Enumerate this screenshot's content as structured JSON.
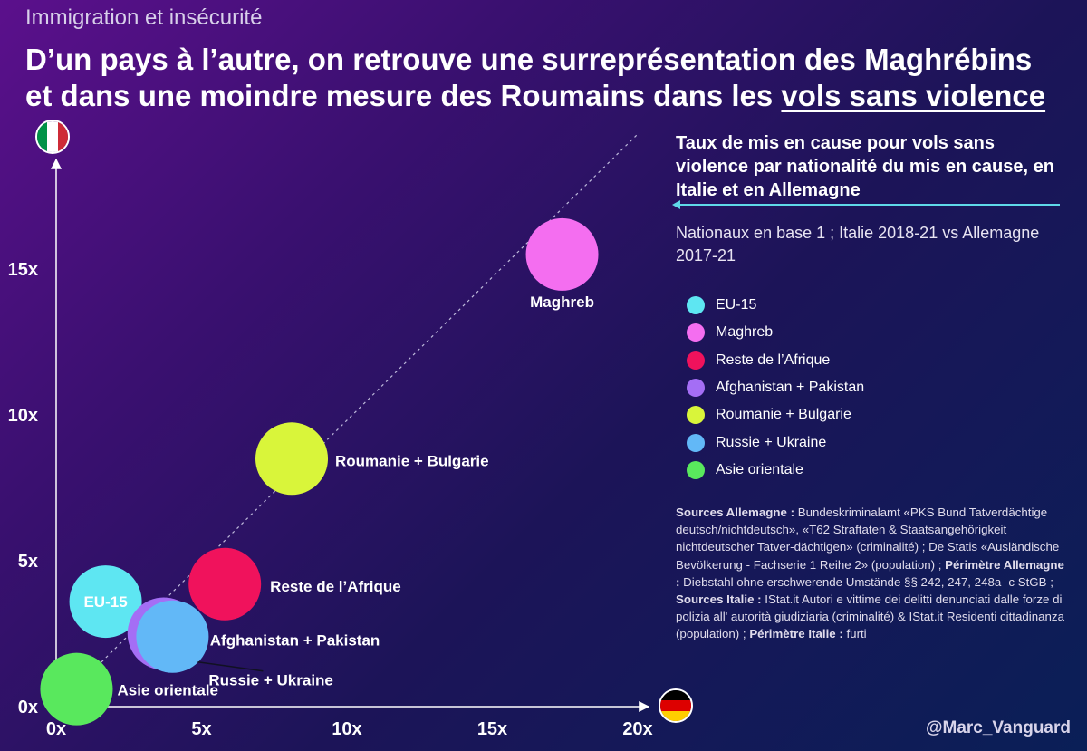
{
  "header": {
    "kicker": "Immigration et insécurité",
    "headline_line1": "D’un pays à l’autre, on retrouve une surreprésentation des Maghrébins",
    "headline_line2_pre": "et dans une moindre mesure des Roumains dans les ",
    "headline_line2_underlined": "vols sans violence"
  },
  "panel": {
    "title": "Taux de mis en cause pour vols sans violence par nationalité du mis en cause, en Italie et en Allemagne",
    "subtitle": "Nationaux en base 1 ; Italie 2018-21 vs Allemagne 2017-21"
  },
  "sources": {
    "de_label": "Sources Allemagne :",
    "de_text": " Bundeskriminalamt «PKS Bund Tatverdächtige deutsch/nichtdeutsch», «T62 Straftaten & Staatsangehörigkeit nichtdeutscher Tatver-dächtigen» (criminalité) ; De Statis «Ausländische Bevölkerung - Fachserie 1 Reihe 2» (population) ; ",
    "de_perim_label": "Périmètre Allemagne :",
    "de_perim_text": " Diebstahl ohne erschwerende Umstände §§ 242, 247, 248a -c StGB ;  ",
    "it_label": "Sources Italie :",
    "it_text": " IStat.it Autori e vittime dei delitti denunciati dalle forze di polizia all' autorità giudiziaria (criminalité) & IStat.it Residenti cittadinanza (population) ; ",
    "it_perim_label": "Périmètre Italie :",
    "it_perim_text": " furti"
  },
  "handle": "@Marc_Vanguard",
  "flags": {
    "italy": {
      "icon": "italy-flag-icon",
      "colors": [
        "#009246",
        "#ffffff",
        "#ce2b37"
      ]
    },
    "germany": {
      "icon": "germany-flag-icon",
      "colors": [
        "#000000",
        "#dd0000",
        "#ffce00"
      ]
    }
  },
  "chart_data": {
    "type": "scatter",
    "title": "Taux de mis en cause pour vols sans violence par nationalité du mis en cause, en Italie et en Allemagne",
    "xlabel": "Allemagne",
    "ylabel": "Italie",
    "xlim": [
      0,
      20
    ],
    "ylim": [
      0,
      18
    ],
    "x_ticks": [
      0,
      5,
      10,
      15,
      20
    ],
    "x_tick_labels": [
      "0x",
      "5x",
      "10x",
      "15x",
      "20x"
    ],
    "y_ticks": [
      0,
      5,
      10,
      15
    ],
    "y_tick_labels": [
      "0x",
      "5x",
      "10x",
      "15x"
    ],
    "reference_line": "y = x",
    "series": [
      {
        "name": "EU-15",
        "label": "EU-15",
        "x": 1.7,
        "y": 3.6,
        "color": "#5ee6f2"
      },
      {
        "name": "Maghreb",
        "label": "Maghreb",
        "x": 17.4,
        "y": 15.5,
        "color": "#f46ef0"
      },
      {
        "name": "Reste de l’Afrique",
        "label": "Reste de l’Afrique",
        "x": 5.8,
        "y": 4.2,
        "color": "#f0125c"
      },
      {
        "name": "Afghanistan + Pakistan",
        "label": "Afghanistan + Pakistan",
        "x": 3.7,
        "y": 2.5,
        "color": "#a46ef5"
      },
      {
        "name": "Roumanie + Bulgarie",
        "label": "Roumanie + Bulgarie",
        "x": 8.1,
        "y": 8.5,
        "color": "#d9f53a"
      },
      {
        "name": "Russie + Ukraine",
        "label": "Russie + Ukraine",
        "x": 4.0,
        "y": 2.4,
        "color": "#62b8f7"
      },
      {
        "name": "Asie orientale",
        "label": "Asie orientale",
        "x": 0.7,
        "y": 0.6,
        "color": "#59e85d"
      }
    ]
  }
}
